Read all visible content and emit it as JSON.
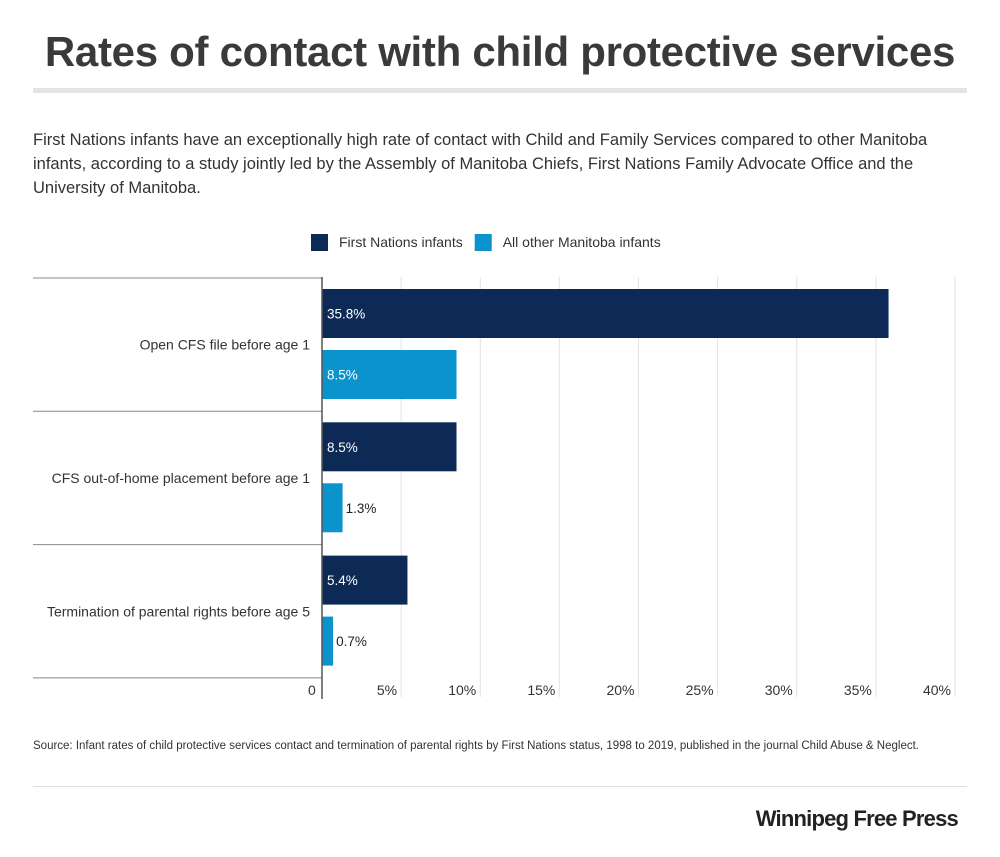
{
  "title": "Rates of contact with child protective services",
  "subtitle": "First Nations infants have an exceptionally high rate of contact with Child and Family Services compared to other Manitoba infants, according to a study jointly led by the Assembly of Manitoba Chiefs, First Nations Family Advocate Office and the University of Manitoba.",
  "source": "Source: Infant rates of child protective services contact and termination of parental rights by First Nations status, 1998 to 2019, published in the journal Child Abuse & Neglect.",
  "logo": "Winnipeg Free Press",
  "chart_data": {
    "type": "bar",
    "orientation": "horizontal",
    "categories": [
      "Open CFS file before age 1",
      "CFS out-of-home placement before age 1",
      "Termination of parental rights before age 5"
    ],
    "series": [
      {
        "name": "First Nations infants",
        "color": "#0d2a57",
        "values": [
          35.8,
          8.5,
          5.4
        ],
        "labels": [
          "35.8%",
          "8.5%",
          "5.4%"
        ]
      },
      {
        "name": "All other Manitoba infants",
        "color": "#0a93cc",
        "values": [
          8.5,
          1.3,
          0.7
        ],
        "labels": [
          "8.5%",
          "1.3%",
          "0.7%"
        ]
      }
    ],
    "xlim": [
      0,
      40
    ],
    "ticks": [
      0,
      5,
      10,
      15,
      20,
      25,
      30,
      35,
      40
    ],
    "tick_labels": [
      "0",
      "5%",
      "10%",
      "15%",
      "20%",
      "25%",
      "30%",
      "35%",
      "40%"
    ],
    "grid": true,
    "legend_position": "top-center"
  }
}
